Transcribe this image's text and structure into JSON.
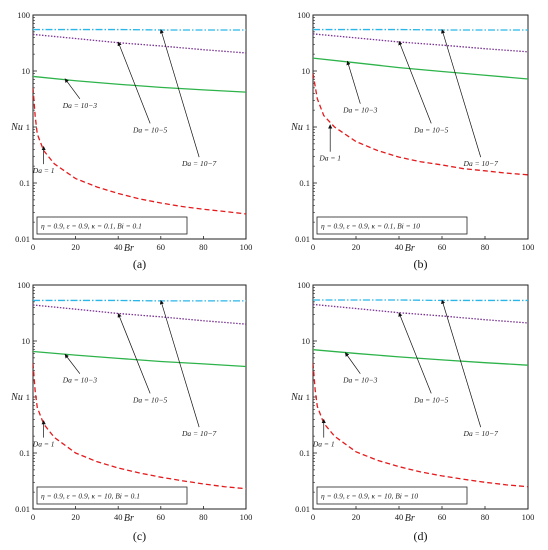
{
  "chart_data": [
    {
      "type": "line",
      "panel_label": "(a)",
      "xlabel": "Br",
      "ylabel": "Nu",
      "xlim": [
        0,
        100
      ],
      "ylim": [
        0.01,
        100
      ],
      "yscale": "log",
      "xticks": [
        "0",
        "20",
        "40",
        "60",
        "80",
        "100"
      ],
      "yticks": [
        "0.01",
        "0.1",
        "1",
        "10",
        "100"
      ],
      "parameters": "η = 0.9, ε = 0.9, κ = 0.1, Bi = 0.1",
      "series": [
        {
          "name": "Da = 1",
          "color": "#e41a1c",
          "dash": "dashed",
          "x": [
            0,
            1,
            2,
            5,
            10,
            20,
            30,
            40,
            50,
            60,
            70,
            80,
            90,
            100
          ],
          "y": [
            5,
            1.6,
            0.75,
            0.38,
            0.22,
            0.12,
            0.085,
            0.065,
            0.052,
            0.044,
            0.038,
            0.034,
            0.031,
            0.028
          ]
        },
        {
          "name": "Da = 10−3",
          "color": "#2db34a",
          "dash": "solid",
          "x": [
            0,
            20,
            40,
            60,
            80,
            100
          ],
          "y": [
            8,
            6.7,
            5.8,
            5.1,
            4.6,
            4.2
          ]
        },
        {
          "name": "Da = 10−5",
          "color": "#7b3294",
          "dash": "dotted",
          "x": [
            0,
            20,
            40,
            60,
            80,
            100
          ],
          "y": [
            45,
            38,
            32,
            28,
            24,
            21
          ]
        },
        {
          "name": "Da = 10−7",
          "color": "#29b6e8",
          "dash": "dashdot",
          "x": [
            0,
            20,
            40,
            60,
            80,
            100
          ],
          "y": [
            55,
            55,
            55,
            54,
            54,
            54
          ]
        }
      ],
      "annotations": [
        {
          "text": "Da = 1",
          "x": 5,
          "y": 0.15,
          "target_x": 5,
          "target_y": 0.45
        },
        {
          "text": "Da = 10−3",
          "x": 22,
          "y": 2.2,
          "target_x": 15,
          "target_y": 7.3
        },
        {
          "text": "Da = 10−5",
          "x": 55,
          "y": 0.8,
          "target_x": 40,
          "target_y": 33
        },
        {
          "text": "Da = 10−7",
          "x": 78,
          "y": 0.2,
          "target_x": 60,
          "target_y": 55
        }
      ]
    },
    {
      "type": "line",
      "panel_label": "(b)",
      "xlabel": "Br",
      "ylabel": "Nu",
      "xlim": [
        0,
        100
      ],
      "ylim": [
        0.01,
        100
      ],
      "yscale": "log",
      "xticks": [
        "0",
        "20",
        "40",
        "60",
        "80",
        "100"
      ],
      "yticks": [
        "0.01",
        "0.1",
        "1",
        "10",
        "100"
      ],
      "parameters": "η = 0.9, ε = 0.9, κ = 0.1, Bi = 10",
      "series": [
        {
          "name": "Da = 1",
          "color": "#e41a1c",
          "dash": "dashed",
          "x": [
            0,
            2,
            5,
            10,
            20,
            30,
            40,
            50,
            60,
            70,
            80,
            90,
            100
          ],
          "y": [
            9,
            3.2,
            1.6,
            1.0,
            0.55,
            0.38,
            0.29,
            0.24,
            0.21,
            0.18,
            0.165,
            0.15,
            0.14
          ]
        },
        {
          "name": "Da = 10−3",
          "color": "#2db34a",
          "dash": "solid",
          "x": [
            0,
            20,
            40,
            60,
            80,
            100
          ],
          "y": [
            17,
            14,
            11.5,
            9.8,
            8.4,
            7.2
          ]
        },
        {
          "name": "Da = 10−5",
          "color": "#7b3294",
          "dash": "dotted",
          "x": [
            0,
            20,
            40,
            60,
            80,
            100
          ],
          "y": [
            46,
            39,
            33,
            29,
            25,
            22
          ]
        },
        {
          "name": "Da = 10−7",
          "color": "#29b6e8",
          "dash": "dashdot",
          "x": [
            0,
            20,
            40,
            60,
            80,
            100
          ],
          "y": [
            55,
            55,
            55,
            54,
            54,
            54
          ]
        }
      ],
      "annotations": [
        {
          "text": "Da = 1",
          "x": 8,
          "y": 0.25,
          "target_x": 8,
          "target_y": 1.1
        },
        {
          "text": "Da = 10−3",
          "x": 22,
          "y": 1.8,
          "target_x": 16,
          "target_y": 15
        },
        {
          "text": "Da = 10−5",
          "x": 55,
          "y": 0.8,
          "target_x": 40,
          "target_y": 34
        },
        {
          "text": "Da = 10−7",
          "x": 78,
          "y": 0.2,
          "target_x": 60,
          "target_y": 55
        }
      ]
    },
    {
      "type": "line",
      "panel_label": "(c)",
      "xlabel": "Br",
      "ylabel": "Nu",
      "xlim": [
        0,
        100
      ],
      "ylim": [
        0.01,
        100
      ],
      "yscale": "log",
      "xticks": [
        "0",
        "20",
        "40",
        "60",
        "80",
        "100"
      ],
      "yticks": [
        "0.01",
        "0.1",
        "1",
        "10",
        "100"
      ],
      "parameters": "η = 0.9, ε = 0.9, κ = 10, Bi = 0.1",
      "series": [
        {
          "name": "Da = 1",
          "color": "#e41a1c",
          "dash": "dashed",
          "x": [
            0,
            1,
            2,
            5,
            10,
            20,
            30,
            40,
            50,
            60,
            70,
            80,
            90,
            100
          ],
          "y": [
            4,
            1.3,
            0.65,
            0.33,
            0.19,
            0.1,
            0.07,
            0.054,
            0.044,
            0.037,
            0.032,
            0.028,
            0.025,
            0.023
          ]
        },
        {
          "name": "Da = 10−3",
          "color": "#2db34a",
          "dash": "solid",
          "x": [
            0,
            20,
            40,
            60,
            80,
            100
          ],
          "y": [
            6.5,
            5.6,
            4.9,
            4.3,
            3.9,
            3.5
          ]
        },
        {
          "name": "Da = 10−5",
          "color": "#7b3294",
          "dash": "dotted",
          "x": [
            0,
            20,
            40,
            60,
            80,
            100
          ],
          "y": [
            44,
            37,
            31,
            27,
            23,
            20
          ]
        },
        {
          "name": "Da = 10−7",
          "color": "#29b6e8",
          "dash": "dashdot",
          "x": [
            0,
            20,
            40,
            60,
            80,
            100
          ],
          "y": [
            53,
            53,
            53,
            52,
            52,
            52
          ]
        }
      ],
      "annotations": [
        {
          "text": "Da = 1",
          "x": 5,
          "y": 0.13,
          "target_x": 5,
          "target_y": 0.38
        },
        {
          "text": "Da = 10−3",
          "x": 22,
          "y": 1.8,
          "target_x": 15,
          "target_y": 5.8
        },
        {
          "text": "Da = 10−5",
          "x": 55,
          "y": 0.8,
          "target_x": 40,
          "target_y": 31
        },
        {
          "text": "Da = 10−7",
          "x": 78,
          "y": 0.2,
          "target_x": 60,
          "target_y": 53
        }
      ]
    },
    {
      "type": "line",
      "panel_label": "(d)",
      "xlabel": "Br",
      "ylabel": "Nu",
      "xlim": [
        0,
        100
      ],
      "ylim": [
        0.01,
        100
      ],
      "yscale": "log",
      "xticks": [
        "0",
        "20",
        "40",
        "60",
        "80",
        "100"
      ],
      "yticks": [
        "0.01",
        "0.1",
        "1",
        "10",
        "100"
      ],
      "parameters": "η = 0.9, ε = 0.9, κ = 10, Bi = 10",
      "series": [
        {
          "name": "Da = 1",
          "color": "#e41a1c",
          "dash": "dashed",
          "x": [
            0,
            1,
            2,
            5,
            10,
            20,
            30,
            40,
            50,
            60,
            70,
            80,
            90,
            100
          ],
          "y": [
            4,
            1.35,
            0.68,
            0.34,
            0.2,
            0.105,
            0.074,
            0.057,
            0.046,
            0.039,
            0.034,
            0.03,
            0.027,
            0.025
          ]
        },
        {
          "name": "Da = 10−3",
          "color": "#2db34a",
          "dash": "solid",
          "x": [
            0,
            20,
            40,
            60,
            80,
            100
          ],
          "y": [
            7,
            6.0,
            5.2,
            4.6,
            4.1,
            3.7
          ]
        },
        {
          "name": "Da = 10−5",
          "color": "#7b3294",
          "dash": "dotted",
          "x": [
            0,
            20,
            40,
            60,
            80,
            100
          ],
          "y": [
            45,
            38,
            32,
            28,
            24,
            21
          ]
        },
        {
          "name": "Da = 10−7",
          "color": "#29b6e8",
          "dash": "dashdot",
          "x": [
            0,
            20,
            40,
            60,
            80,
            100
          ],
          "y": [
            54,
            54,
            54,
            53,
            53,
            53
          ]
        }
      ],
      "annotations": [
        {
          "text": "Da = 1",
          "x": 5,
          "y": 0.13,
          "target_x": 5,
          "target_y": 0.4
        },
        {
          "text": "Da = 10−3",
          "x": 22,
          "y": 1.8,
          "target_x": 15,
          "target_y": 6.2
        },
        {
          "text": "Da = 10−5",
          "x": 55,
          "y": 0.8,
          "target_x": 40,
          "target_y": 32
        },
        {
          "text": "Da = 10−7",
          "x": 78,
          "y": 0.2,
          "target_x": 60,
          "target_y": 54
        }
      ]
    }
  ]
}
